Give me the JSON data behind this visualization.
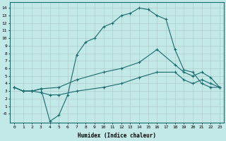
{
  "xlabel": "Humidex (Indice chaleur)",
  "bg_color": "#c2e8e8",
  "line_color": "#1a6b6b",
  "grid_color": "#b0cccc",
  "xlim": [
    -0.5,
    23.5
  ],
  "ylim": [
    -1.2,
    14.8
  ],
  "xticks": [
    0,
    1,
    2,
    3,
    4,
    5,
    6,
    7,
    8,
    9,
    10,
    11,
    12,
    13,
    14,
    15,
    16,
    17,
    18,
    19,
    20,
    21,
    22,
    23
  ],
  "yticks": [
    0,
    1,
    2,
    3,
    4,
    5,
    6,
    7,
    8,
    9,
    10,
    11,
    12,
    13,
    14
  ],
  "ytick_labels": [
    "-0",
    "1",
    "2",
    "3",
    "4",
    "5",
    "6",
    "7",
    "8",
    "9",
    "10",
    "11",
    "12",
    "13",
    "14"
  ],
  "line1_x": [
    0,
    1,
    2,
    3,
    4,
    5,
    6,
    7,
    8,
    9,
    10,
    11,
    12,
    13,
    14,
    15,
    16,
    17,
    18,
    19,
    20,
    21,
    22,
    23
  ],
  "line1_y": [
    3.5,
    3.0,
    3.0,
    3.3,
    -1.0,
    -0.2,
    2.5,
    7.8,
    9.5,
    10.0,
    11.5,
    12.0,
    13.0,
    13.3,
    14.0,
    13.8,
    13.0,
    12.5,
    8.5,
    5.8,
    5.5,
    4.0,
    3.5,
    3.5
  ],
  "line2_x": [
    0,
    1,
    2,
    3,
    5,
    7,
    10,
    12,
    14,
    16,
    18,
    19,
    20,
    21,
    22,
    23
  ],
  "line2_y": [
    3.5,
    3.0,
    3.0,
    3.3,
    3.5,
    4.5,
    5.5,
    6.0,
    6.8,
    8.5,
    6.5,
    5.5,
    5.0,
    5.5,
    4.8,
    3.5
  ],
  "line3_x": [
    0,
    1,
    2,
    3,
    4,
    5,
    7,
    10,
    12,
    14,
    16,
    18,
    19,
    20,
    21,
    22,
    23
  ],
  "line3_y": [
    3.5,
    3.0,
    3.0,
    2.8,
    2.5,
    2.5,
    3.0,
    3.5,
    4.0,
    4.8,
    5.5,
    5.5,
    4.5,
    4.0,
    4.5,
    4.0,
    3.5
  ]
}
